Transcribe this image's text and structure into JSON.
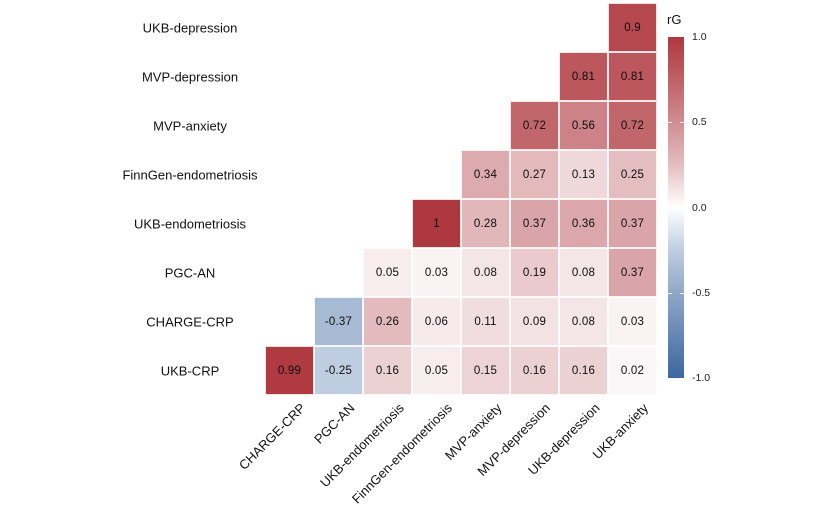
{
  "chart_data": {
    "type": "heatmap",
    "title": "",
    "rows": [
      "UKB-depression",
      "MVP-depression",
      "MVP-anxiety",
      "FinnGen-endometriosis",
      "UKB-endometriosis",
      "PGC-AN",
      "CHARGE-CRP",
      "UKB-CRP"
    ],
    "columns": [
      "CHARGE-CRP",
      "PGC-AN",
      "UKB-endometriosis",
      "FinnGen-endometriosis",
      "MVP-anxiety",
      "MVP-depression",
      "UKB-depression",
      "UKB-anxiety"
    ],
    "matrix": [
      [
        null,
        null,
        null,
        null,
        null,
        null,
        null,
        0.9
      ],
      [
        null,
        null,
        null,
        null,
        null,
        null,
        0.81,
        0.81
      ],
      [
        null,
        null,
        null,
        null,
        null,
        0.72,
        0.56,
        0.72
      ],
      [
        null,
        null,
        null,
        null,
        0.34,
        0.27,
        0.13,
        0.25
      ],
      [
        null,
        null,
        null,
        1,
        0.28,
        0.37,
        0.36,
        0.37
      ],
      [
        null,
        null,
        0.05,
        0.03,
        0.08,
        0.19,
        0.08,
        0.37
      ],
      [
        null,
        -0.37,
        0.26,
        0.06,
        0.11,
        0.09,
        0.08,
        0.03
      ],
      [
        0.99,
        -0.25,
        0.16,
        0.05,
        0.15,
        0.16,
        0.16,
        0.02
      ]
    ],
    "value_domain": [
      -1,
      1
    ],
    "shape": "lower-triangle-staircase",
    "grid": false,
    "cell_labels_shown": true,
    "colors": {
      "positive_end": "#ae383f",
      "zero": "#ffffff",
      "negative_end": "#3d67a0",
      "cell_border": "#ffffff",
      "text": "#111111"
    },
    "legend": {
      "title": "rG",
      "position": "right",
      "ticks": [
        "1.0",
        "0.5",
        "0.0",
        "-0.5",
        "-1.0"
      ],
      "tick_values": [
        1.0,
        0.5,
        0.0,
        -0.5,
        -1.0
      ]
    }
  }
}
